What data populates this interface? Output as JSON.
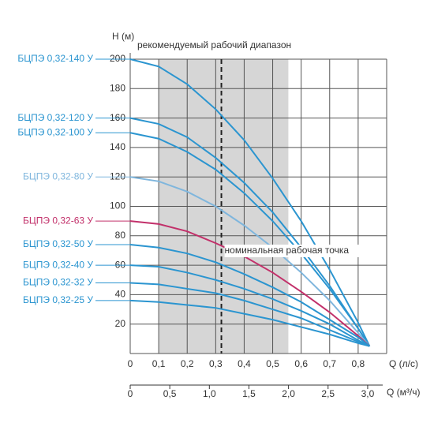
{
  "chart_data": {
    "type": "line",
    "title": "рекомендуемый рабочий диапазон",
    "ylabel": "H (м)",
    "xlabel": "Q (л/с)",
    "x2label": "Q (м³/ч)",
    "annotation": "номинальная рабочая точка",
    "recommended_range": [
      0.1,
      0.555
    ],
    "nominal_q": 0.32,
    "band_color": "#d6d6d6",
    "x": [
      0,
      0.1,
      0.2,
      0.3,
      0.4,
      0.5,
      0.6,
      0.7,
      0.8,
      0.84
    ],
    "series": [
      {
        "name": "БЦПЭ 0,32-140 У",
        "color": "#2b95d0",
        "values": [
          200,
          195,
          183,
          166,
          145,
          119,
          90,
          57,
          21,
          5
        ]
      },
      {
        "name": "БЦПЭ 0,32-120 У",
        "color": "#2b95d0",
        "values": [
          160,
          156,
          147,
          133,
          116,
          96,
          72,
          46,
          17,
          5
        ]
      },
      {
        "name": "БЦПЭ 0,32-100 У",
        "color": "#2b95d0",
        "values": [
          150,
          146,
          137,
          125,
          109,
          90,
          68,
          44,
          17,
          5
        ]
      },
      {
        "name": "БЦПЭ 0,32-80 У",
        "color": "#7fb6dd",
        "values": [
          120,
          117,
          110,
          100,
          87,
          72,
          55,
          36,
          14,
          5
        ]
      },
      {
        "name": "БЦПЭ 0,32-63 У",
        "color": "#c2306a",
        "values": [
          90,
          88,
          83,
          75,
          66,
          55,
          42,
          28,
          12,
          5
        ]
      },
      {
        "name": "БЦПЭ 0,32-50 У",
        "color": "#2b95d0",
        "values": [
          74,
          72,
          68,
          62,
          54,
          45,
          35,
          23,
          11,
          5
        ]
      },
      {
        "name": "БЦПЭ 0,32-40 У",
        "color": "#2b95d0",
        "values": [
          60,
          59,
          55,
          50,
          44,
          37,
          29,
          20,
          9,
          5
        ]
      },
      {
        "name": "БЦПЭ 0,32-32 У",
        "color": "#2b95d0",
        "values": [
          48,
          47,
          44,
          41,
          36,
          30,
          24,
          16,
          8,
          5
        ]
      },
      {
        "name": "БЦПЭ 0,32-25 У",
        "color": "#2b95d0",
        "values": [
          36,
          35,
          33,
          31,
          27,
          23,
          18,
          13,
          7,
          5
        ]
      }
    ],
    "xlim": [
      0,
      0.9
    ],
    "xticks": [
      0,
      {
        "value": 0.1,
        "label": "0,1"
      },
      {
        "value": 0.2,
        "label": "0,2"
      },
      {
        "value": 0.3,
        "label": "0,3"
      },
      {
        "value": 0.4,
        "label": "0,4"
      },
      {
        "value": 0.5,
        "label": "0,5"
      },
      {
        "value": 0.6,
        "label": "0,6"
      },
      {
        "value": 0.7,
        "label": "0,7"
      },
      {
        "value": 0.8,
        "label": "0,8"
      }
    ],
    "x2lim": [
      0,
      3.24
    ],
    "x2ticks": [
      0,
      {
        "value": 0.5,
        "label": "0,5"
      },
      {
        "value": 1.0,
        "label": "1,0"
      },
      {
        "value": 1.5,
        "label": "1,5"
      },
      {
        "value": 2.0,
        "label": "2,0"
      },
      {
        "value": 2.5,
        "label": "2,5"
      },
      {
        "value": 3.0,
        "label": "3,0"
      }
    ],
    "ylim": [
      0,
      200
    ],
    "yticks": [
      20,
      40,
      60,
      80,
      100,
      120,
      140,
      160,
      180,
      200
    ],
    "grid": true
  }
}
